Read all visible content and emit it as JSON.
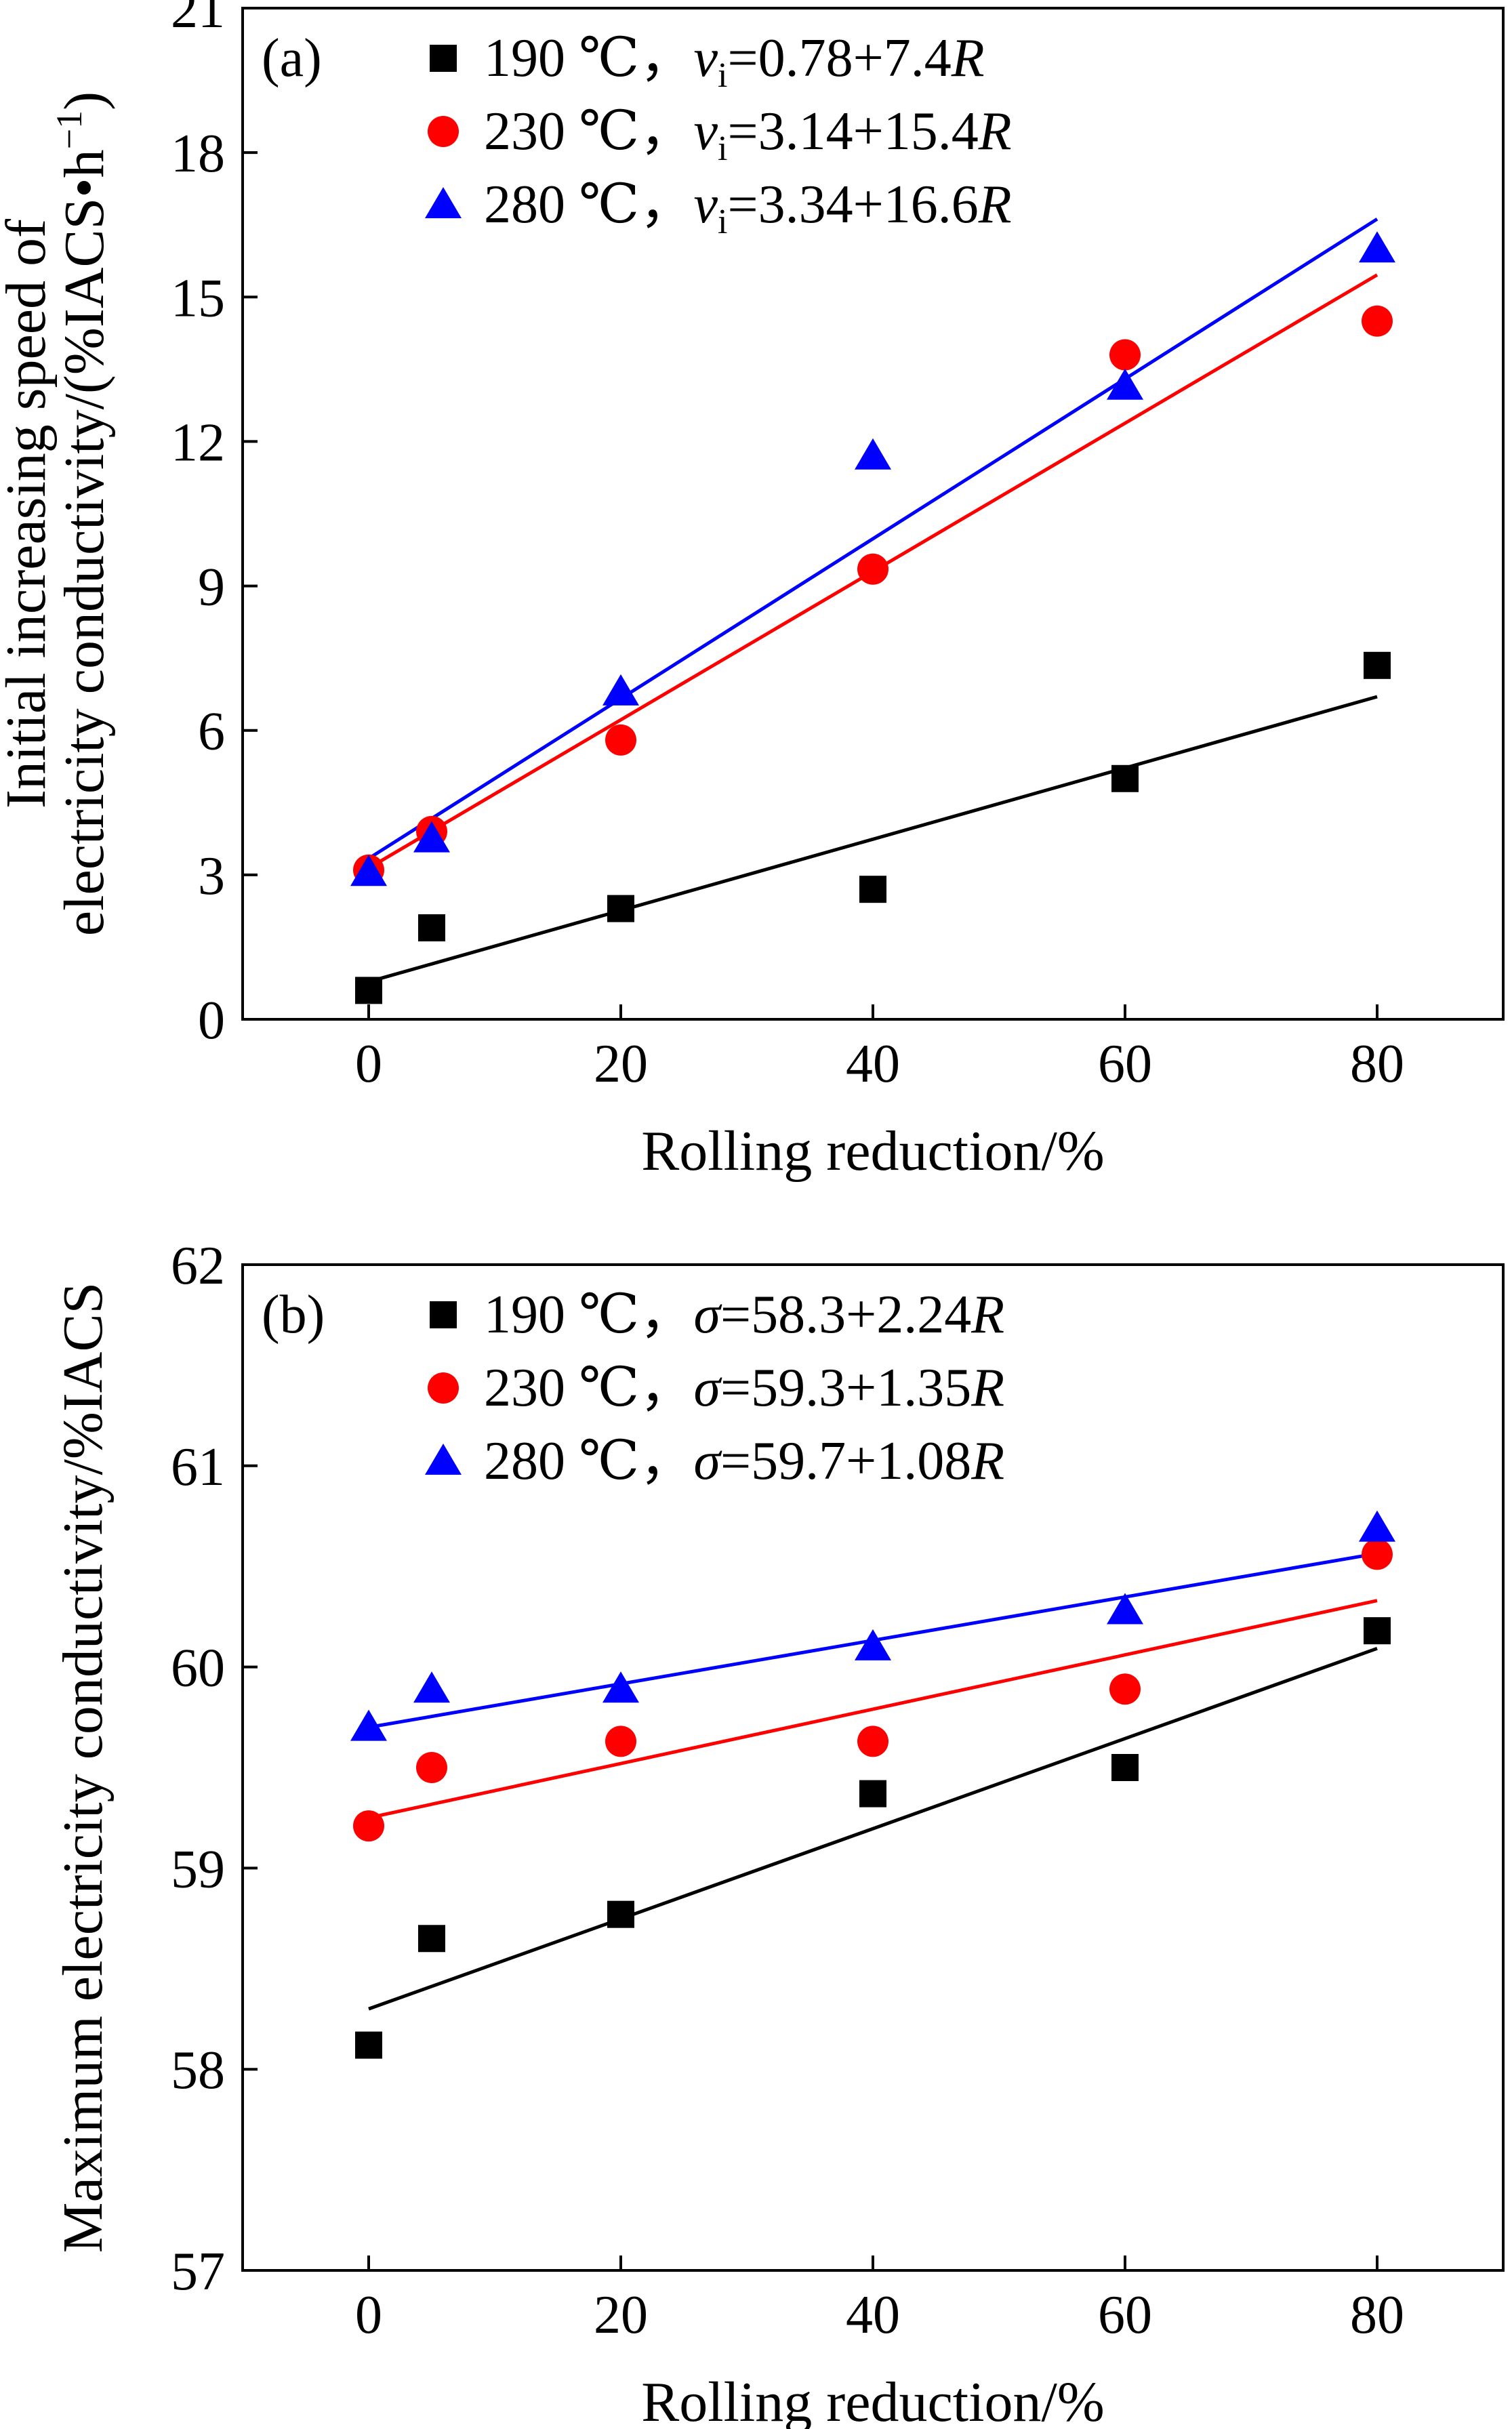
{
  "chart_data": [
    {
      "panel": "(a)",
      "type": "scatter",
      "xlabel": "Rolling reduction/%",
      "ylabel_line1": "Initial increasing speed of",
      "ylabel_line2_main": "electricity conductivity/(%IACS•h",
      "ylabel_line2_sup": "−1",
      "ylabel_line2_end": ")",
      "xlim": [
        -10,
        90
      ],
      "ylim": [
        0,
        21
      ],
      "xticks": [
        0,
        20,
        40,
        60,
        80
      ],
      "yticks": [
        0,
        3,
        6,
        9,
        12,
        15,
        18,
        21
      ],
      "series": [
        {
          "temp": "190 ℃",
          "var_main": "v",
          "var_sub": "i",
          "equation": "=0.78+7.4",
          "eq_var": "R",
          "marker": "square",
          "color": "#000000",
          "x": [
            0,
            5,
            20,
            40,
            60,
            80
          ],
          "y": [
            0.6,
            1.9,
            2.3,
            2.7,
            5.0,
            7.35
          ],
          "fit": {
            "intercept": 0.78,
            "slope": 7.4,
            "x_range": [
              0,
              80
            ]
          }
        },
        {
          "temp": "230 ℃",
          "var_main": "v",
          "var_sub": "i",
          "equation": "=3.14+15.4",
          "eq_var": "R",
          "marker": "circle",
          "color": "#ff0000",
          "x": [
            0,
            5,
            20,
            40,
            60,
            80
          ],
          "y": [
            3.1,
            3.9,
            5.8,
            9.35,
            13.8,
            14.5
          ],
          "fit": {
            "intercept": 3.14,
            "slope": 15.4,
            "x_range": [
              0,
              80
            ]
          }
        },
        {
          "temp": "280 ℃",
          "var_main": "v",
          "var_sub": "i",
          "equation": "=3.34+16.6",
          "eq_var": "R",
          "marker": "triangle",
          "color": "#0000ff",
          "x": [
            0,
            5,
            20,
            40,
            60,
            80
          ],
          "y": [
            3.05,
            3.75,
            6.8,
            11.7,
            13.15,
            16.0
          ],
          "fit": {
            "intercept": 3.34,
            "slope": 16.6,
            "x_range": [
              0,
              80
            ]
          }
        }
      ]
    },
    {
      "panel": "(b)",
      "type": "scatter",
      "xlabel": "Rolling reduction/%",
      "ylabel": "Maximum electricity conductivity/%IACS",
      "xlim": [
        -10,
        90
      ],
      "ylim": [
        57,
        62
      ],
      "xticks": [
        0,
        20,
        40,
        60,
        80
      ],
      "yticks": [
        57,
        58,
        59,
        60,
        61,
        62
      ],
      "series": [
        {
          "temp": "190 ℃",
          "var_main": "σ",
          "equation": "=58.3+2.24",
          "eq_var": "R",
          "marker": "square",
          "color": "#000000",
          "x": [
            0,
            5,
            20,
            40,
            60,
            80
          ],
          "y": [
            58.12,
            58.65,
            58.77,
            59.37,
            59.5,
            60.18
          ],
          "fit": {
            "intercept": 58.3,
            "slope": 2.24,
            "x_range": [
              0,
              80
            ]
          }
        },
        {
          "temp": "230 ℃",
          "var_main": "σ",
          "equation": "=59.3+1.35",
          "eq_var": "R",
          "marker": "circle",
          "color": "#ff0000",
          "x": [
            0,
            5,
            20,
            40,
            60,
            80
          ],
          "y": [
            59.21,
            59.5,
            59.63,
            59.63,
            59.89,
            60.56
          ],
          "fit": {
            "intercept": 59.25,
            "slope": 1.35,
            "x_range": [
              0,
              80
            ]
          }
        },
        {
          "temp": "280 ℃",
          "var_main": "σ",
          "equation": "=59.7+1.08",
          "eq_var": "R",
          "marker": "triangle",
          "color": "#0000ff",
          "x": [
            0,
            5,
            20,
            40,
            60,
            80
          ],
          "y": [
            59.7,
            59.89,
            59.89,
            60.1,
            60.28,
            60.69
          ],
          "fit": {
            "intercept": 59.7,
            "slope": 1.08,
            "x_range": [
              0,
              80
            ]
          }
        }
      ]
    }
  ]
}
